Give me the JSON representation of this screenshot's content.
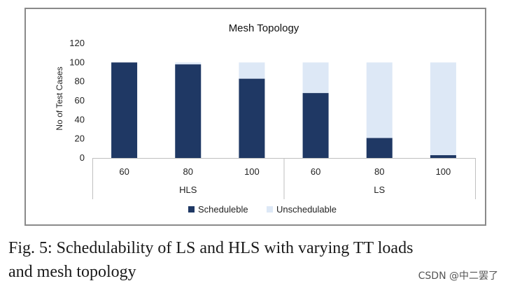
{
  "chart_data": {
    "type": "bar",
    "stacked": true,
    "title": "Mesh Topology",
    "ylabel": "No of Test Cases",
    "xlabel": "",
    "ylim": [
      0,
      120
    ],
    "yticks": [
      0,
      20,
      40,
      60,
      80,
      100,
      120
    ],
    "grid": false,
    "legend_position": "bottom",
    "categories": [
      "60",
      "80",
      "100",
      "60",
      "80",
      "100"
    ],
    "groups": [
      {
        "label": "HLS",
        "categories": [
          "60",
          "80",
          "100"
        ]
      },
      {
        "label": "LS",
        "categories": [
          "60",
          "80",
          "100"
        ]
      }
    ],
    "series": [
      {
        "name": "Scheduleble",
        "color": "#1f3864",
        "values": [
          100,
          98,
          83,
          68,
          21,
          3
        ]
      },
      {
        "name": "Unschedulable",
        "color": "#dde8f6",
        "values": [
          0,
          2,
          17,
          32,
          79,
          97
        ]
      }
    ]
  },
  "caption": {
    "line1": "Fig. 5: Schedulability of LS and HLS with varying TT loads",
    "line2": "and mesh topology"
  },
  "watermark": "CSDN @中二罢了"
}
